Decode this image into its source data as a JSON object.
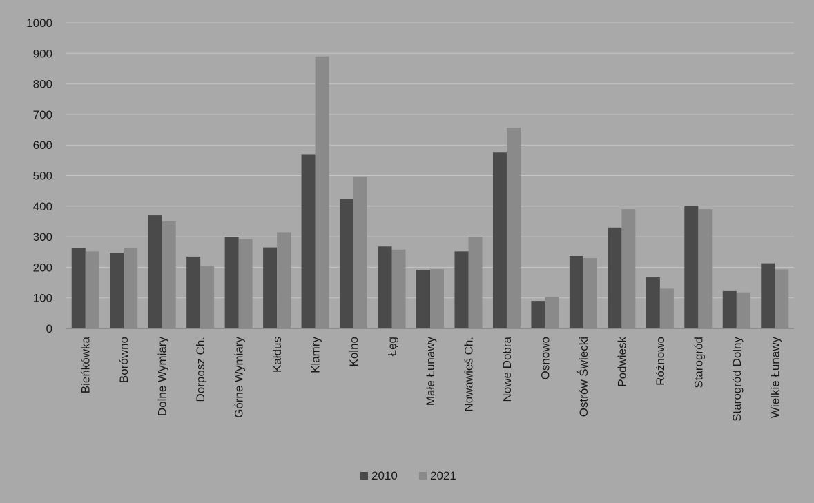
{
  "chart_data": {
    "type": "bar",
    "title": "",
    "xlabel": "",
    "ylabel": "",
    "ylim": [
      0,
      1000
    ],
    "yticks": [
      0,
      100,
      200,
      300,
      400,
      500,
      600,
      700,
      800,
      900,
      1000
    ],
    "grid": true,
    "legend_position": "bottom",
    "categories": [
      "Bieńkówka",
      "Borówno",
      "Dolne Wymiary",
      "Dorposz Ch.",
      "Górne Wymiary",
      "Kałdus",
      "Klamry",
      "Kolno",
      "Łęg",
      "Małe Łunawy",
      "Nowawieś Ch.",
      "Nowe Dobra",
      "Osnowo",
      "Ostrów Świecki",
      "Podwiesk",
      "Różnowo",
      "Starogród",
      "Starogród Dolny",
      "Wielkie Łunawy"
    ],
    "series": [
      {
        "name": "2010",
        "color": "#4a4a4a",
        "values": [
          262,
          247,
          370,
          235,
          300,
          265,
          570,
          423,
          268,
          192,
          252,
          575,
          90,
          237,
          330,
          167,
          400,
          122,
          213
        ]
      },
      {
        "name": "2021",
        "color": "#8a8a8a",
        "values": [
          252,
          262,
          350,
          204,
          292,
          315,
          890,
          497,
          258,
          194,
          300,
          657,
          103,
          230,
          390,
          130,
          390,
          118,
          193
        ]
      }
    ]
  }
}
